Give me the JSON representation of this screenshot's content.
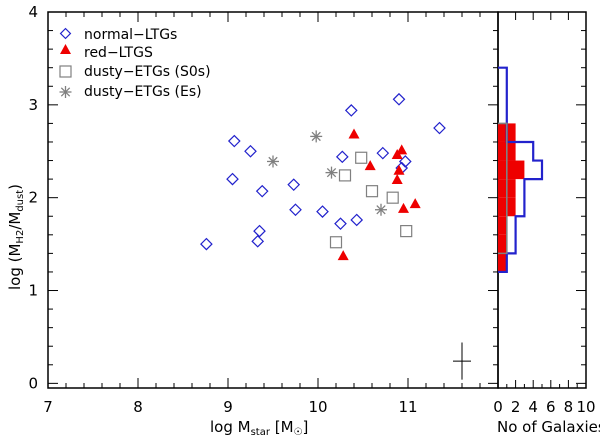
{
  "colors": {
    "blue": "#2222cc",
    "red": "#ee0000",
    "gray": "#808080",
    "black": "#000000"
  },
  "chart_data": {
    "type": "scatter",
    "xlabel": {
      "main": "log M",
      "sub": "star",
      "unit_open": " [M",
      "unit_sym": "☉",
      "unit_close": "]"
    },
    "ylabel": {
      "open": "log (M",
      "sub1": "H2",
      "mid": "/M",
      "sub2": "dust",
      "close": ")"
    },
    "xlim": [
      7,
      12
    ],
    "ylim": [
      -0.05,
      4.0
    ],
    "xticks": [
      "7",
      "8",
      "9",
      "10",
      "11"
    ],
    "xtick_values": [
      7,
      8,
      9,
      10,
      11
    ],
    "yticks": [
      "0",
      "1",
      "2",
      "3",
      "4"
    ],
    "ytick_values": [
      0,
      1,
      2,
      3,
      4
    ],
    "legend": [
      "normal−LTGs",
      "red−LTGS",
      "dusty−ETGs (S0s)",
      "dusty−ETGs (Es)"
    ],
    "series": [
      {
        "name": "normal−LTGs",
        "marker": "diamond",
        "color": "#2222cc",
        "points": [
          [
            8.76,
            1.5
          ],
          [
            9.05,
            2.2
          ],
          [
            9.07,
            2.61
          ],
          [
            9.25,
            2.5
          ],
          [
            9.33,
            1.53
          ],
          [
            9.35,
            1.64
          ],
          [
            9.38,
            2.07
          ],
          [
            9.73,
            2.14
          ],
          [
            9.75,
            1.87
          ],
          [
            10.05,
            1.85
          ],
          [
            10.25,
            1.72
          ],
          [
            10.27,
            2.44
          ],
          [
            10.37,
            2.94
          ],
          [
            10.43,
            1.76
          ],
          [
            10.72,
            2.48
          ],
          [
            10.9,
            3.06
          ],
          [
            10.93,
            2.32
          ],
          [
            10.97,
            2.39
          ],
          [
            11.35,
            2.75
          ]
        ]
      },
      {
        "name": "red−LTGS",
        "marker": "triangle",
        "color": "#ee0000",
        "points": [
          [
            10.28,
            1.37
          ],
          [
            10.4,
            2.68
          ],
          [
            10.58,
            2.34
          ],
          [
            10.88,
            2.46
          ],
          [
            10.88,
            2.19
          ],
          [
            10.9,
            2.29
          ],
          [
            10.93,
            2.51
          ],
          [
            10.95,
            1.88
          ],
          [
            11.08,
            1.93
          ]
        ]
      },
      {
        "name": "dusty−ETGs (S0s)",
        "marker": "square",
        "color": "#808080",
        "points": [
          [
            10.2,
            1.52
          ],
          [
            10.3,
            2.24
          ],
          [
            10.48,
            2.43
          ],
          [
            10.6,
            2.07
          ],
          [
            10.83,
            2.0
          ],
          [
            10.98,
            1.64
          ]
        ]
      },
      {
        "name": "dusty−ETGs (Es)",
        "marker": "asterisk",
        "color": "#808080",
        "points": [
          [
            9.5,
            2.39
          ],
          [
            9.98,
            2.66
          ],
          [
            10.15,
            2.27
          ],
          [
            10.7,
            1.87
          ]
        ]
      }
    ],
    "error_bar": {
      "x": 11.6,
      "y": 0.24,
      "dx": 0.1,
      "dy": 0.2
    },
    "histogram": {
      "xlabel": "No of Galaxies",
      "xticks": [
        "0",
        "2",
        "4",
        "6",
        "8",
        "10"
      ],
      "xtick_values": [
        0,
        2,
        4,
        6,
        8,
        10
      ],
      "xlim": [
        0,
        10
      ],
      "bin_width": 0.2,
      "outlines": [
        {
          "name": "normal−LTGs",
          "color": "#2222cc",
          "bins": [
            [
              1.2,
              1
            ],
            [
              1.4,
              2
            ],
            [
              1.6,
              2
            ],
            [
              1.8,
              3
            ],
            [
              2.0,
              3
            ],
            [
              2.2,
              5
            ],
            [
              2.4,
              4
            ],
            [
              2.6,
              1
            ],
            [
              2.8,
              1
            ],
            [
              3.0,
              1
            ],
            [
              3.2,
              1
            ]
          ]
        },
        {
          "name": "dusty−ETGs (S0s)",
          "color": "#808080",
          "bins": [
            [
              1.4,
              1
            ],
            [
              1.6,
              1
            ],
            [
              1.8,
              1
            ],
            [
              2.0,
              1
            ],
            [
              2.2,
              1
            ],
            [
              2.4,
              1
            ],
            [
              2.6,
              1
            ]
          ]
        }
      ],
      "filled": {
        "name": "red−LTGS",
        "color": "#ee0000",
        "bins": [
          [
            1.2,
            1
          ],
          [
            1.4,
            1
          ],
          [
            1.6,
            1
          ],
          [
            1.8,
            2
          ],
          [
            2.0,
            2
          ],
          [
            2.2,
            3
          ],
          [
            2.4,
            2
          ],
          [
            2.6,
            2
          ]
        ]
      }
    }
  }
}
